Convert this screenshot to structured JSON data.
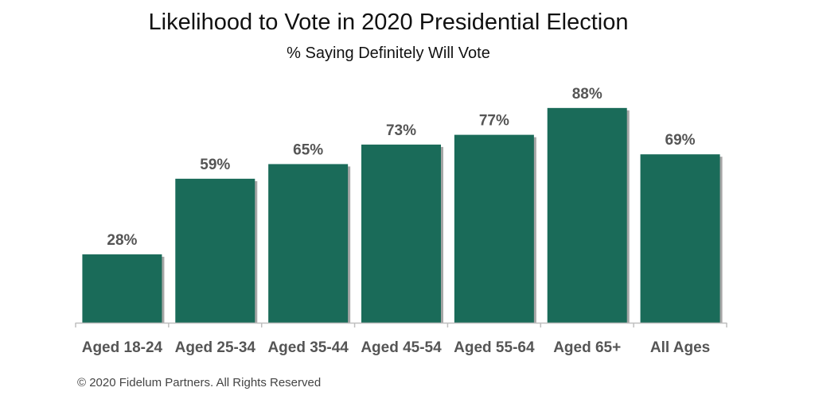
{
  "footer": {
    "copyright": "© 2020 Fidelum Partners. All Rights Reserved"
  },
  "colors": {
    "bar": "#1a6b59",
    "bar_shadow": "#a6a6a6",
    "axis": "#bfbfbf",
    "label": "#555555"
  },
  "chart_data": {
    "type": "bar",
    "title": "Likelihood to Vote in 2020 Presidential Election",
    "subtitle": "% Saying Definitely Will Vote",
    "xlabel": "",
    "ylabel": "",
    "categories": [
      "Aged 18-24",
      "Aged 25-34",
      "Aged 35-44",
      "Aged 45-54",
      "Aged 55-64",
      "Aged 65+",
      "All Ages"
    ],
    "values": [
      28,
      59,
      65,
      73,
      77,
      88,
      69
    ],
    "data_labels": [
      "28%",
      "59%",
      "65%",
      "73%",
      "77%",
      "88%",
      "69%"
    ],
    "ylim": [
      0,
      100
    ],
    "grid": false,
    "legend": "none"
  }
}
